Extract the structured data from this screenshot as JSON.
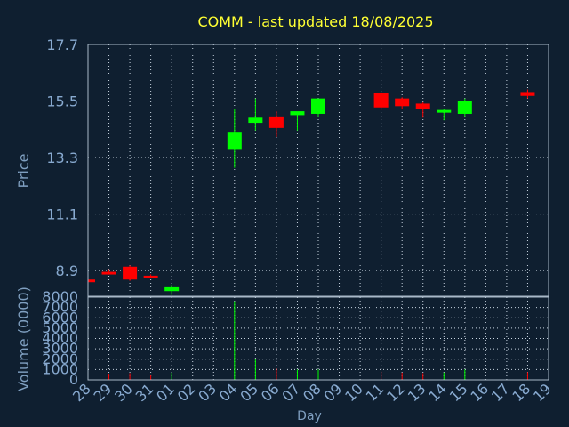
{
  "chart_data": {
    "type": "candlestick",
    "title": "COMM - last updated 18/08/2025",
    "xlabel": "Day",
    "price_panel": {
      "ylabel": "Price",
      "ylim": [
        7.9,
        17.7
      ],
      "yticks": [
        "8.9",
        "11.1",
        "13.3",
        "15.5",
        "17.7"
      ],
      "grid": true
    },
    "volume_panel": {
      "ylabel": "Volume (0000)",
      "ylim": [
        0,
        8000
      ],
      "yticks": [
        "0",
        "1000",
        "2000",
        "3000",
        "4000",
        "5000",
        "6000",
        "7000",
        "8000"
      ],
      "grid": true
    },
    "categories": [
      "28",
      "29",
      "30",
      "31",
      "01",
      "02",
      "03",
      "04",
      "05",
      "06",
      "07",
      "08",
      "09",
      "10",
      "11",
      "12",
      "13",
      "14",
      "15",
      "16",
      "17",
      "18",
      "19"
    ],
    "candles": [
      {
        "day": "28",
        "open": 8.55,
        "high": 8.6,
        "low": 8.5,
        "close": 8.5
      },
      {
        "day": "29",
        "open": 8.85,
        "high": 8.95,
        "low": 8.8,
        "close": 8.8
      },
      {
        "day": "30",
        "open": 9.05,
        "high": 9.1,
        "low": 8.5,
        "close": 8.55
      },
      {
        "day": "31",
        "open": 8.7,
        "high": 8.75,
        "low": 8.6,
        "close": 8.65
      },
      {
        "day": "01",
        "open": 8.1,
        "high": 8.35,
        "low": 7.95,
        "close": 8.25
      },
      {
        "day": "04",
        "open": 13.6,
        "high": 15.2,
        "low": 12.9,
        "close": 14.3
      },
      {
        "day": "05",
        "open": 14.65,
        "high": 15.6,
        "low": 14.35,
        "close": 14.85
      },
      {
        "day": "06",
        "open": 14.9,
        "high": 15.1,
        "low": 14.1,
        "close": 14.45
      },
      {
        "day": "07",
        "open": 14.95,
        "high": 15.05,
        "low": 14.35,
        "close": 15.1
      },
      {
        "day": "08",
        "open": 15.0,
        "high": 15.6,
        "low": 14.9,
        "close": 15.6
      },
      {
        "day": "11",
        "open": 15.8,
        "high": 15.85,
        "low": 15.15,
        "close": 15.25
      },
      {
        "day": "12",
        "open": 15.6,
        "high": 15.65,
        "low": 15.2,
        "close": 15.3
      },
      {
        "day": "13",
        "open": 15.4,
        "high": 15.45,
        "low": 14.85,
        "close": 15.2
      },
      {
        "day": "14",
        "open": 15.05,
        "high": 15.2,
        "low": 14.75,
        "close": 15.15
      },
      {
        "day": "15",
        "open": 15.0,
        "high": 15.6,
        "low": 14.9,
        "close": 15.5
      },
      {
        "day": "18",
        "open": 15.85,
        "high": 15.95,
        "low": 15.6,
        "close": 15.7
      }
    ],
    "volumes": [
      {
        "day": "28",
        "value": 150,
        "direction": "up"
      },
      {
        "day": "29",
        "value": 600,
        "direction": "down"
      },
      {
        "day": "30",
        "value": 650,
        "direction": "down"
      },
      {
        "day": "31",
        "value": 500,
        "direction": "down"
      },
      {
        "day": "01",
        "value": 700,
        "direction": "up"
      },
      {
        "day": "04",
        "value": 7600,
        "direction": "up"
      },
      {
        "day": "05",
        "value": 2000,
        "direction": "up"
      },
      {
        "day": "06",
        "value": 1100,
        "direction": "down"
      },
      {
        "day": "07",
        "value": 1000,
        "direction": "up"
      },
      {
        "day": "08",
        "value": 1000,
        "direction": "up"
      },
      {
        "day": "11",
        "value": 800,
        "direction": "down"
      },
      {
        "day": "12",
        "value": 700,
        "direction": "down"
      },
      {
        "day": "13",
        "value": 650,
        "direction": "down"
      },
      {
        "day": "14",
        "value": 700,
        "direction": "up"
      },
      {
        "day": "15",
        "value": 1000,
        "direction": "up"
      },
      {
        "day": "18",
        "value": 750,
        "direction": "down"
      }
    ],
    "colors": {
      "background": "#0f1f30",
      "plot_border": "#a8b8c8",
      "grid": "#c8d4e0",
      "title": "#ffff33",
      "axis_text": "#88aad0",
      "label_text": "#7f9fc0",
      "up": "#00ff00",
      "down": "#ff0000"
    }
  }
}
